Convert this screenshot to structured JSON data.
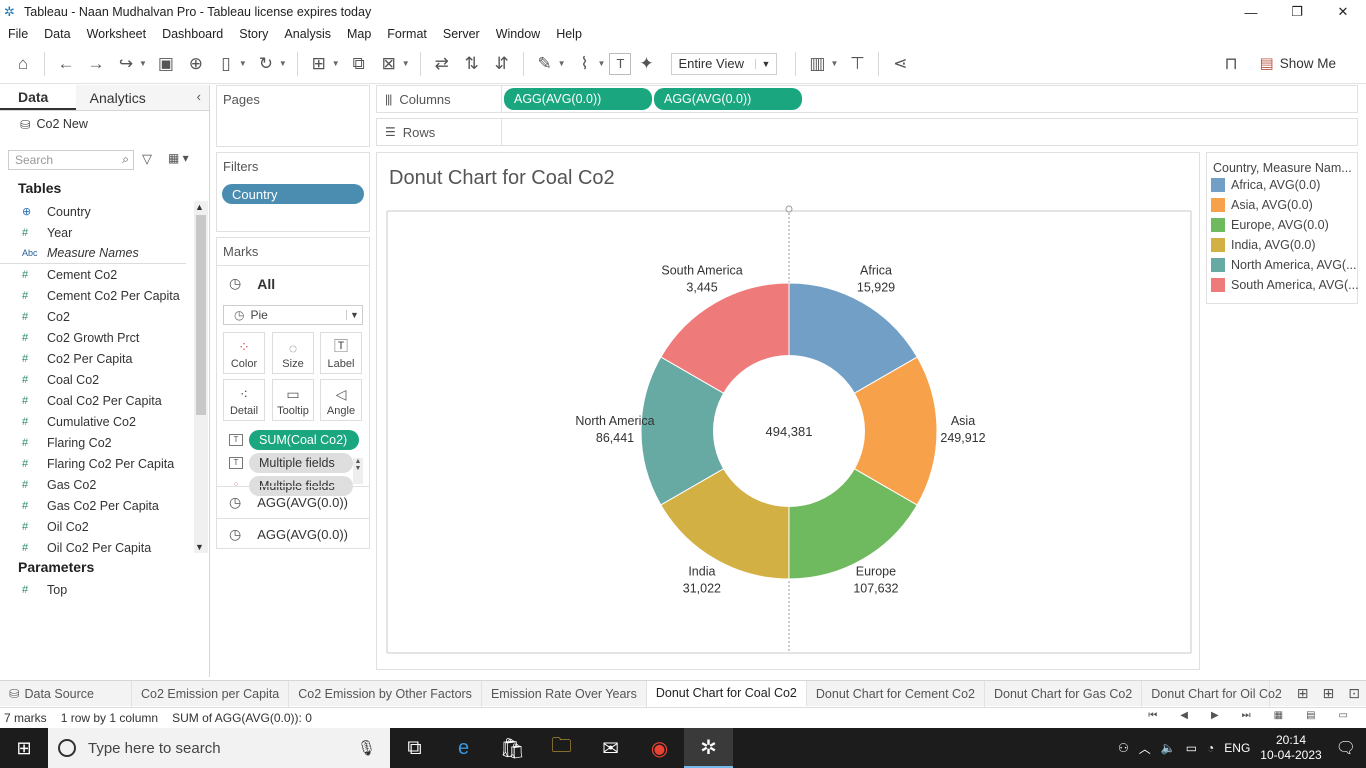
{
  "window": {
    "title": "Tableau - Naan Mudhalvan Pro - Tableau license expires today",
    "controls": [
      "—",
      "❐",
      "✕"
    ]
  },
  "menu": [
    "File",
    "Data",
    "Worksheet",
    "Dashboard",
    "Story",
    "Analysis",
    "Map",
    "Format",
    "Server",
    "Window",
    "Help"
  ],
  "toolbar": {
    "fit_value": "Entire View",
    "show_me": "Show Me"
  },
  "data_pane": {
    "tab_data": "Data",
    "tab_analytics": "Analytics",
    "datasource": "Co2 New",
    "search_placeholder": "Search",
    "tables_heading": "Tables",
    "fields": [
      {
        "type": "globe",
        "name": "Country"
      },
      {
        "type": "measure",
        "name": "Year"
      },
      {
        "type": "abc",
        "name": "Measure Names"
      },
      {
        "type": "measure",
        "name": "Cement Co2"
      },
      {
        "type": "measure",
        "name": "Cement Co2 Per Capita"
      },
      {
        "type": "measure",
        "name": "Co2"
      },
      {
        "type": "measure",
        "name": "Co2 Growth Prct"
      },
      {
        "type": "measure",
        "name": "Co2 Per Capita"
      },
      {
        "type": "measure",
        "name": "Coal Co2"
      },
      {
        "type": "measure",
        "name": "Coal Co2 Per Capita"
      },
      {
        "type": "measure",
        "name": "Cumulative Co2"
      },
      {
        "type": "measure",
        "name": "Flaring Co2"
      },
      {
        "type": "measure",
        "name": "Flaring Co2 Per Capita"
      },
      {
        "type": "measure",
        "name": "Gas Co2"
      },
      {
        "type": "measure",
        "name": "Gas Co2 Per Capita"
      },
      {
        "type": "measure",
        "name": "Oil Co2"
      },
      {
        "type": "measure",
        "name": "Oil Co2 Per Capita"
      }
    ],
    "parameters_heading": "Parameters",
    "parameters": [
      "Top"
    ]
  },
  "cards": {
    "pages": "Pages",
    "filters": "Filters",
    "filter_pill": "Country",
    "marks": "Marks",
    "marks_all": "All",
    "mark_type": "Pie",
    "buttons": {
      "color": "Color",
      "size": "Size",
      "label": "Label",
      "detail": "Detail",
      "tooltip": "Tooltip",
      "angle": "Angle"
    },
    "mark_fields": [
      "SUM(Coal Co2)",
      "Multiple fields",
      "Multiple fields"
    ],
    "agg_rows": [
      "AGG(AVG(0.0))",
      "AGG(AVG(0.0))"
    ]
  },
  "shelves": {
    "columns_label": "Columns",
    "rows_label": "Rows",
    "column_pills": [
      "AGG(AVG(0.0))",
      "AGG(AVG(0.0))"
    ]
  },
  "viz": {
    "title": "Donut Chart for Coal Co2"
  },
  "chart_data": {
    "type": "pie",
    "title": "Donut Chart for Coal Co2",
    "center_label": "494,381",
    "slices": [
      {
        "name": "Africa",
        "label": "15,929",
        "share": 0.1667,
        "color": "#729fc6"
      },
      {
        "name": "Asia",
        "label": "249,912",
        "share": 0.1667,
        "color": "#f7a24b"
      },
      {
        "name": "Europe",
        "label": "107,632",
        "share": 0.1667,
        "color": "#6fb95f"
      },
      {
        "name": "India",
        "label": "31,022",
        "share": 0.1667,
        "color": "#d3b043"
      },
      {
        "name": "North America",
        "label": "86,441",
        "share": 0.1666,
        "color": "#67a9a3"
      },
      {
        "name": "South America",
        "label": "3,445",
        "share": 0.1666,
        "color": "#ee7a7a"
      }
    ]
  },
  "legend": {
    "title": "Country, Measure Nam...",
    "items": [
      {
        "label": "Africa, AVG(0.0)",
        "color": "#729fc6"
      },
      {
        "label": "Asia, AVG(0.0)",
        "color": "#f7a24b"
      },
      {
        "label": "Europe, AVG(0.0)",
        "color": "#6fb95f"
      },
      {
        "label": "India, AVG(0.0)",
        "color": "#d3b043"
      },
      {
        "label": "North America, AVG(...",
        "color": "#67a9a3"
      },
      {
        "label": "South America, AVG(...",
        "color": "#ee7a7a"
      }
    ]
  },
  "sheet_tabs": {
    "data_source": "Data Source",
    "sheets": [
      "Co2 Emission per Capita",
      "Co2 Emission by Other Factors",
      "Emission Rate Over Years",
      "Donut Chart for Coal Co2",
      "Donut Chart for Cement Co2",
      "Donut Chart for Gas Co2",
      "Donut Chart for Oil Co2"
    ],
    "active": "Donut Chart for Coal Co2"
  },
  "status": {
    "marks": "7 marks",
    "dims": "1 row by 1 column",
    "sum": "SUM of AGG(AVG(0.0)): 0"
  },
  "taskbar": {
    "search_placeholder": "Type here to search",
    "lang": "ENG",
    "time": "20:14",
    "date": "10-04-2023"
  }
}
